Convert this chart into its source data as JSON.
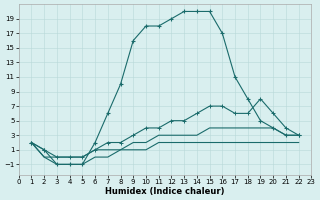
{
  "xlabel": "Humidex (Indice chaleur)",
  "xlim": [
    0,
    23
  ],
  "ylim": [
    -2.5,
    21
  ],
  "xticks": [
    0,
    1,
    2,
    3,
    4,
    5,
    6,
    7,
    8,
    9,
    10,
    11,
    12,
    13,
    14,
    15,
    16,
    17,
    18,
    19,
    20,
    21,
    22,
    23
  ],
  "yticks": [
    -1,
    1,
    3,
    5,
    7,
    9,
    11,
    13,
    15,
    17,
    19
  ],
  "bg_color": "#d9efef",
  "grid_color": "#b8d8d8",
  "line_color": "#1a6b6b",
  "line1_x": [
    1,
    2,
    3,
    4,
    5,
    6,
    7,
    8,
    9,
    10,
    11,
    12,
    13,
    14,
    15,
    16,
    17,
    18,
    19,
    20,
    21,
    22
  ],
  "line1_y": [
    2,
    1,
    -1,
    -1,
    -1,
    2,
    6,
    10,
    16,
    18,
    18,
    19,
    20,
    20,
    20,
    17,
    11,
    8,
    5,
    4,
    3,
    3
  ],
  "line2_x": [
    1,
    2,
    3,
    4,
    5,
    6,
    7,
    8,
    9,
    10,
    11,
    12,
    13,
    14,
    15,
    16,
    17,
    18,
    19,
    20,
    21,
    22
  ],
  "line2_y": [
    2,
    1,
    0,
    0,
    0,
    1,
    2,
    2,
    3,
    4,
    4,
    5,
    5,
    6,
    7,
    7,
    6,
    6,
    8,
    6,
    4,
    3
  ],
  "line3_x": [
    1,
    2,
    3,
    4,
    5,
    6,
    7,
    8,
    9,
    10,
    11,
    12,
    13,
    14,
    15,
    16,
    17,
    18,
    19,
    20,
    21,
    22
  ],
  "line3_y": [
    2,
    0,
    0,
    0,
    0,
    1,
    1,
    1,
    2,
    2,
    3,
    3,
    3,
    3,
    4,
    4,
    4,
    4,
    4,
    4,
    3,
    3
  ],
  "line4_x": [
    1,
    2,
    3,
    4,
    5,
    6,
    7,
    8,
    9,
    10,
    11,
    12,
    13,
    14,
    15,
    16,
    17,
    18,
    19,
    20,
    21,
    22
  ],
  "line4_y": [
    2,
    0,
    -1,
    -1,
    -1,
    0,
    0,
    1,
    1,
    1,
    2,
    2,
    2,
    2,
    2,
    2,
    2,
    2,
    2,
    2,
    2,
    2
  ]
}
